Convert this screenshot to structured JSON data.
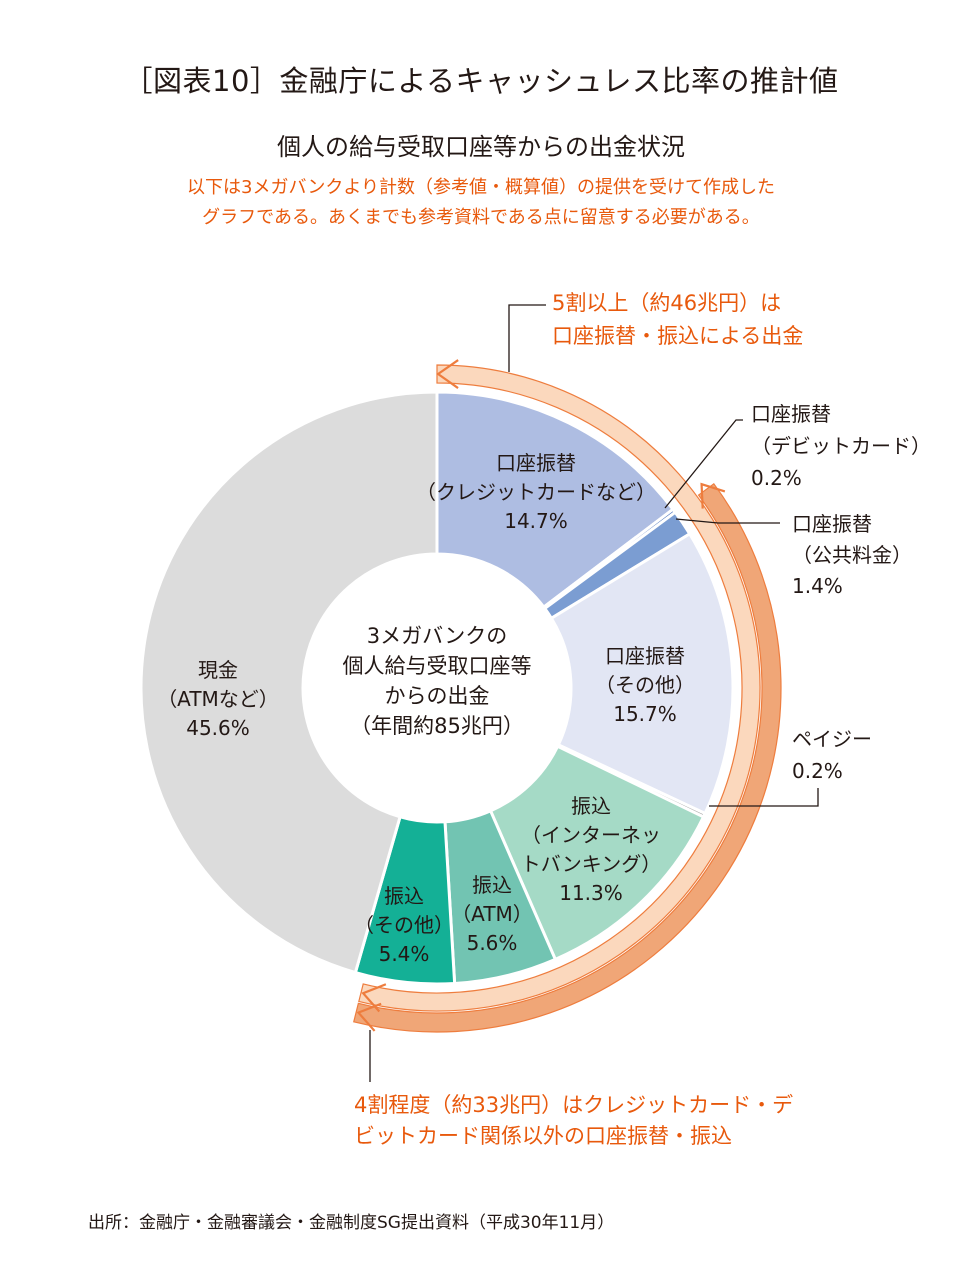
{
  "title": "［図表10］金融庁によるキャッシュレス比率の推計値",
  "subtitle": "個人の給与受取口座等からの出金状況",
  "note_lines": [
    "以下は3メガバンクより計数（参考値・概算値）の提供を受けて作成した",
    "グラフである。あくまでも参考資料である点に留意する必要がある。"
  ],
  "source": "出所：金融庁・金融審議会・金融制度SG提出資料（平成30年11月）",
  "chart_data": {
    "type": "pie",
    "variant": "donut",
    "center_label": [
      "3メガバンクの",
      "個人給与受取口座等",
      "からの出金",
      "（年間約85兆円）"
    ],
    "start": "top, clockwise",
    "slices": [
      {
        "label": [
          "口座振替",
          "（クレジットカードなど）"
        ],
        "value": 14.7,
        "value_label": "14.7%",
        "color": "#aebde2",
        "label_position": "inside"
      },
      {
        "label": [
          "口座振替",
          "（デビットカード）"
        ],
        "value": 0.2,
        "value_label": "0.2%",
        "color": "#4a73bd",
        "label_position": "outside"
      },
      {
        "label": [
          "口座振替",
          "（公共料金）"
        ],
        "value": 1.4,
        "value_label": "1.4%",
        "color": "#7b9dd2",
        "label_position": "outside"
      },
      {
        "label": [
          "口座振替",
          "（その他）"
        ],
        "value": 15.7,
        "value_label": "15.7%",
        "color": "#e2e6f4",
        "label_position": "inside"
      },
      {
        "label": [
          "ペイジー"
        ],
        "value": 0.2,
        "value_label": "0.2%",
        "color": "#a4a4a4",
        "label_position": "outside"
      },
      {
        "label": [
          "振込",
          "（インターネッ",
          "トバンキング）"
        ],
        "value": 11.3,
        "value_label": "11.3%",
        "color": "#a5dac6",
        "label_position": "inside"
      },
      {
        "label": [
          "振込",
          "（ATM）"
        ],
        "value": 5.6,
        "value_label": "5.6%",
        "color": "#72c4b2",
        "label_position": "inside"
      },
      {
        "label": [
          "振込",
          "（その他）"
        ],
        "value": 5.4,
        "value_label": "5.4%",
        "color": "#14b096",
        "label_position": "inside"
      },
      {
        "label": [
          "現金",
          "（ATMなど）"
        ],
        "value": 45.6,
        "value_label": "45.6%",
        "color": "#dcdcdc",
        "label_position": "inside"
      }
    ],
    "annotations": [
      {
        "text": [
          "5割以上（約46兆円）は",
          "口座振替・振込による出金"
        ],
        "spans_slices": [
          0,
          7
        ],
        "color": "#fbd8bd"
      },
      {
        "text": [
          "4割程度（約33兆円）はクレジットカード・デ",
          "ビットカード関係以外の口座振替・振込"
        ],
        "spans_slices": [
          2,
          7
        ],
        "color": "#f0a677"
      }
    ],
    "colors": {
      "annotation_text": "#e8590c",
      "arrow_stroke": "#ee7d3e",
      "text": "#231815"
    }
  }
}
